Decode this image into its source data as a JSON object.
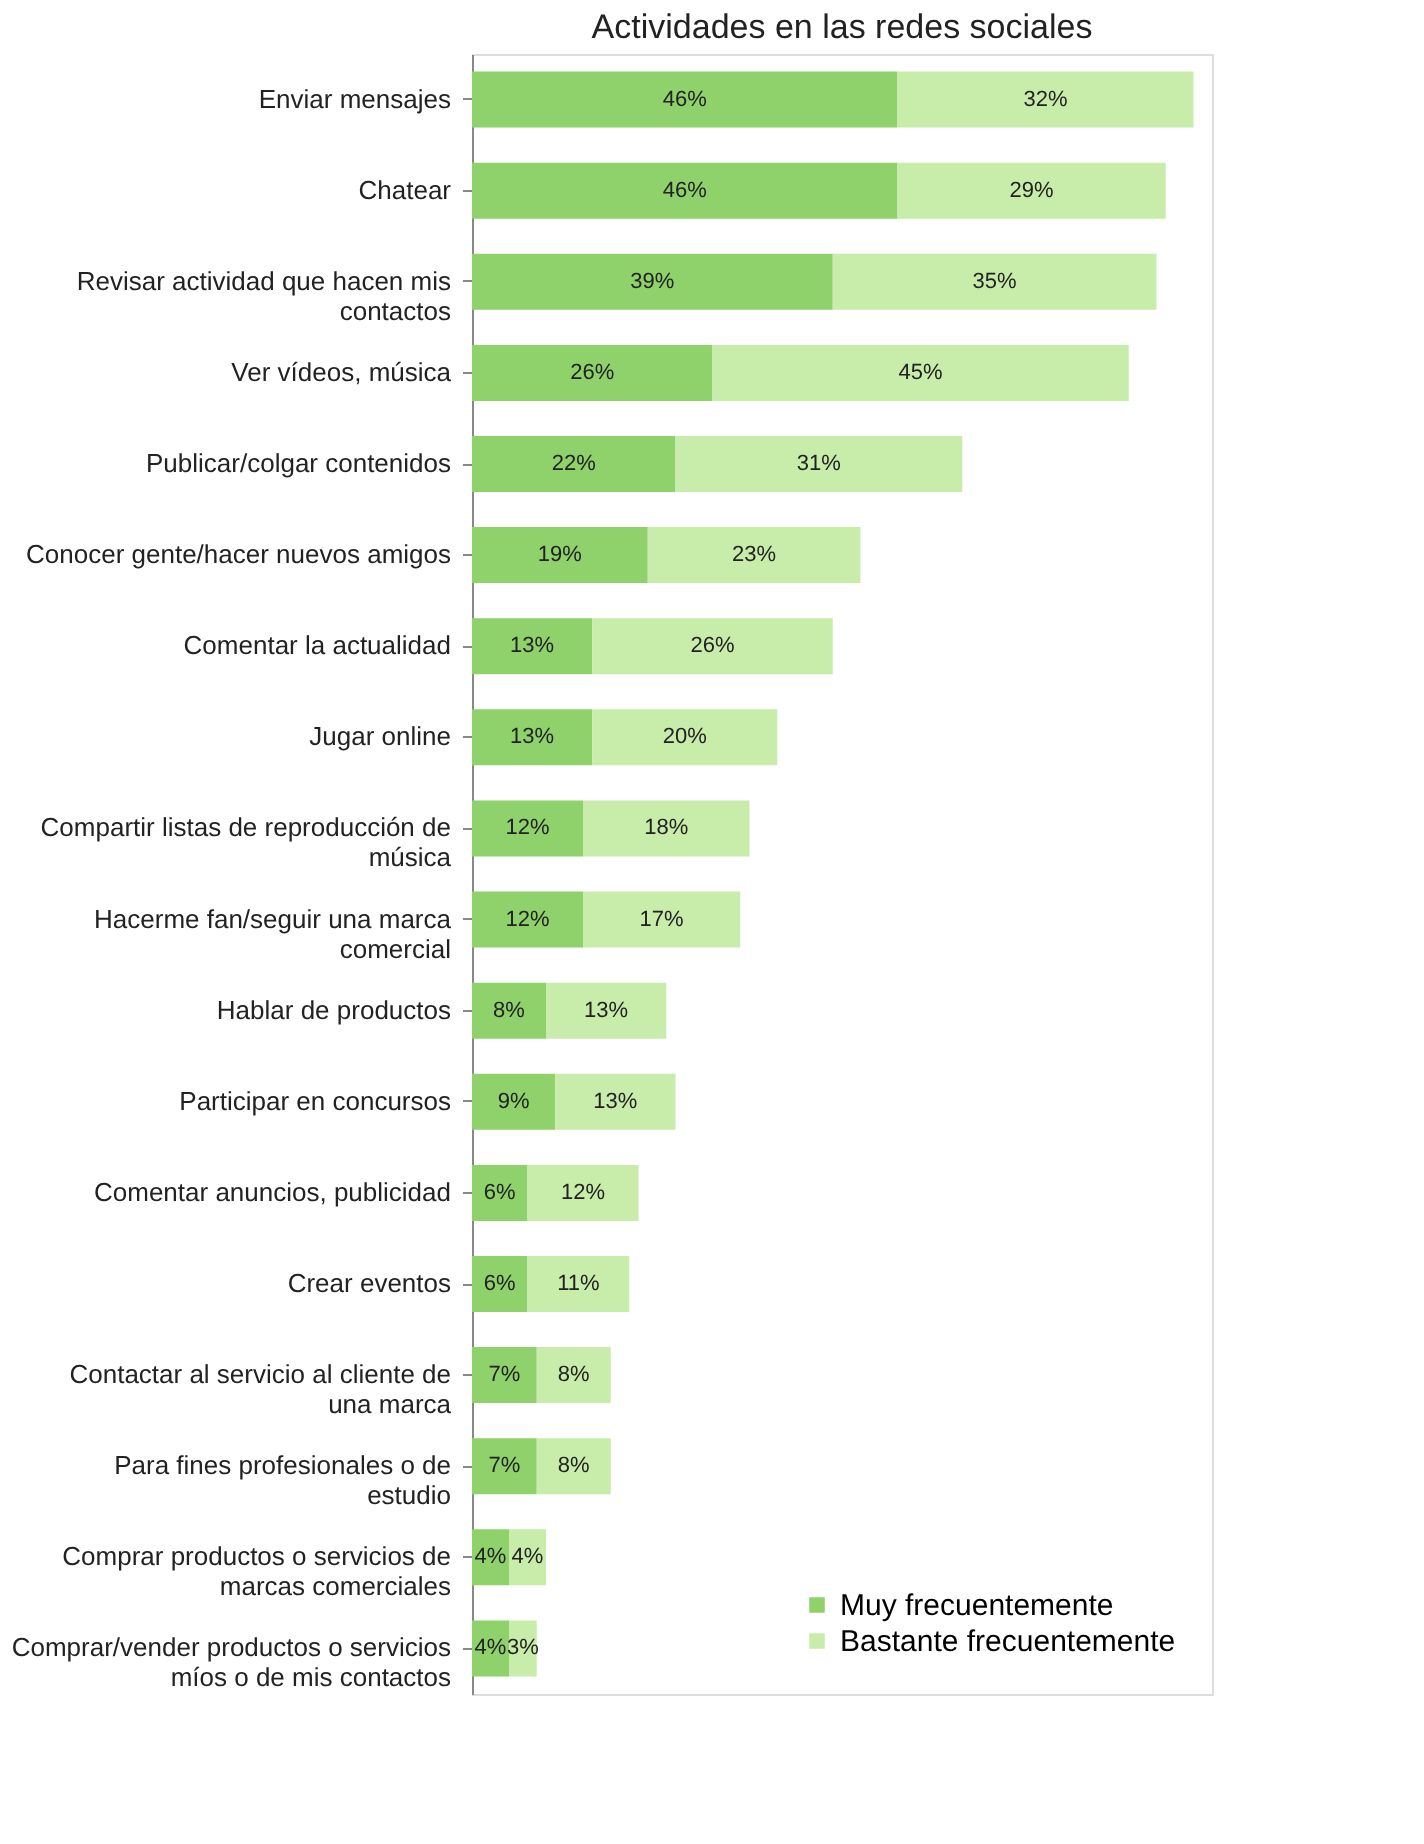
{
  "chart_data": {
    "type": "bar",
    "orientation": "horizontal",
    "stacked": true,
    "title": "Actividades en las redes sociales",
    "categories": [
      "Enviar mensajes",
      "Chatear",
      "Revisar actividad que hacen mis contactos",
      "Ver vídeos, música",
      "Publicar/colgar contenidos",
      "Conocer gente/hacer nuevos amigos",
      "Comentar la actualidad",
      "Jugar online",
      "Compartir listas de reproducción de música",
      "Hacerme fan/seguir una marca comercial",
      "Hablar de productos",
      "Participar en concursos",
      "Comentar anuncios, publicidad",
      "Crear eventos",
      "Contactar al servicio al cliente de una marca",
      "Para fines profesionales o de estudio",
      "Comprar productos o servicios de marcas comerciales",
      "Comprar/vender productos o servicios míos o de mis contactos"
    ],
    "series": [
      {
        "name": "Muy frecuentemente",
        "color": "#8fd16a",
        "values": [
          46,
          46,
          39,
          26,
          22,
          19,
          13,
          13,
          12,
          12,
          8,
          9,
          6,
          6,
          7,
          7,
          4,
          4
        ],
        "value_labels": [
          "46%",
          "46%",
          "39%",
          "26%",
          "22%",
          "19%",
          "13%",
          "13%",
          "12%",
          "12%",
          "8%",
          "9%",
          "6%",
          "6%",
          "7%",
          "7%",
          "4%",
          "4%"
        ]
      },
      {
        "name": "Bastante frecuentemente",
        "color": "#c8ecaa",
        "values": [
          32,
          29,
          35,
          45,
          31,
          23,
          26,
          20,
          18,
          17,
          13,
          13,
          12,
          11,
          8,
          8,
          4,
          3
        ],
        "value_labels": [
          "32%",
          "29%",
          "35%",
          "45%",
          "31%",
          "23%",
          "26%",
          "20%",
          "18%",
          "17%",
          "13%",
          "13%",
          "12%",
          "11%",
          "8%",
          "8%",
          "4%",
          "3%"
        ]
      }
    ],
    "legend": "bottom right"
  }
}
